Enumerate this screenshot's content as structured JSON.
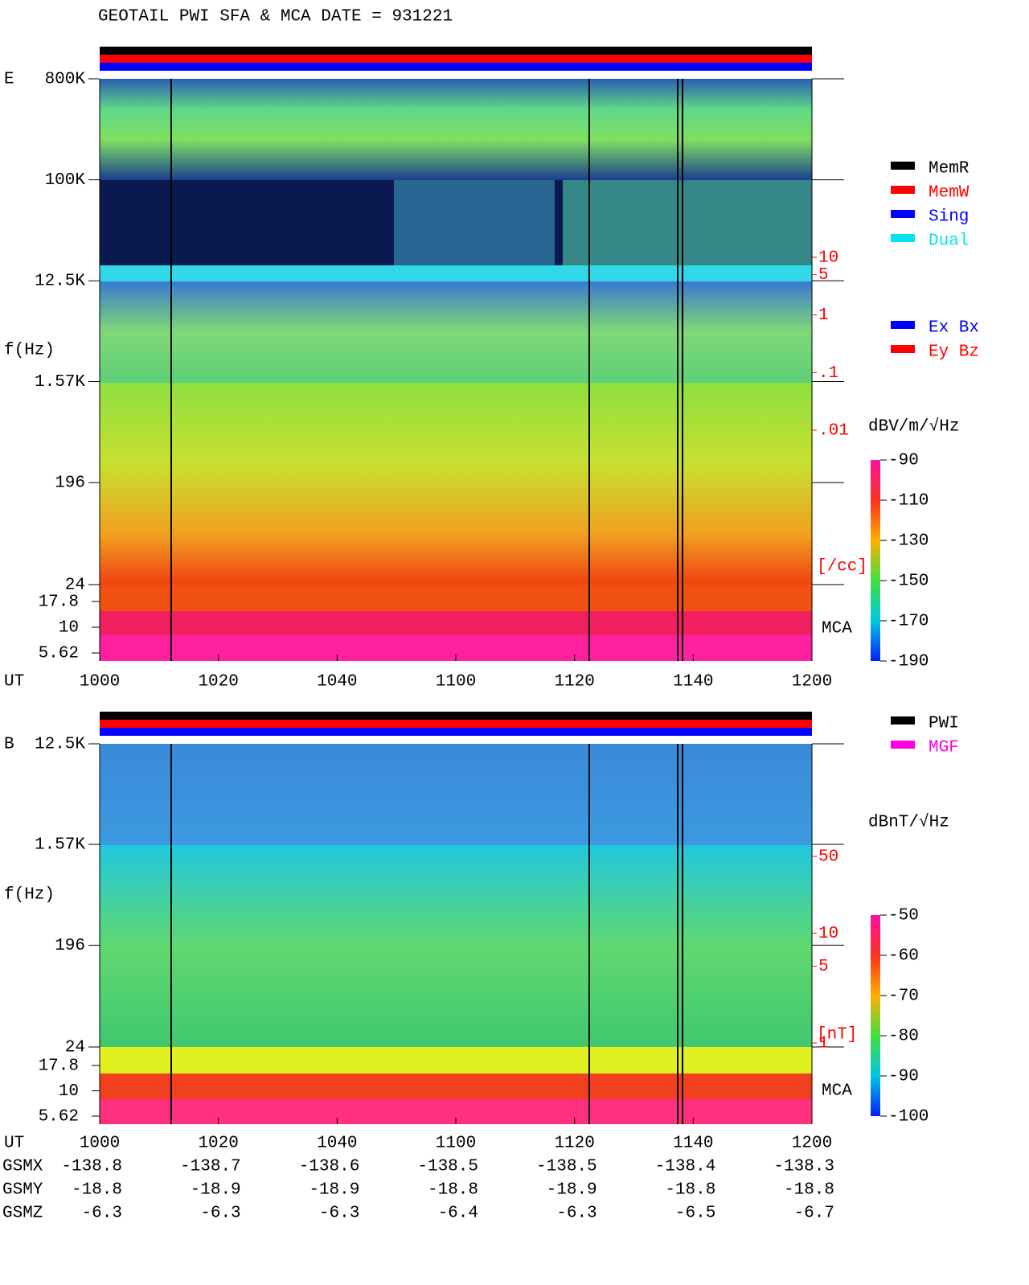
{
  "title": "GEOTAIL  PWI SFA & MCA   DATE = 931221",
  "chart_data": [
    {
      "type": "spectrogram",
      "panel_label": "E",
      "ylabel": "f(Hz)",
      "xlabel": "UT",
      "ylim": [
        24,
        800000
      ],
      "yticks": [
        {
          "value": 800000,
          "label": "800K"
        },
        {
          "value": 100000,
          "label": "100K"
        },
        {
          "value": 12500,
          "label": "12.5K"
        },
        {
          "value": 1570,
          "label": "1.57K"
        },
        196,
        24
      ],
      "xticks": [
        "1000",
        "1020",
        "1040",
        "1100",
        "1120",
        "1140",
        "1200"
      ],
      "mca_label": "MCA",
      "mca_ylim": [
        5.62,
        17.8
      ],
      "mca_ticks": [
        17.8,
        10,
        5.62
      ],
      "right_lim": [
        0.01,
        10
      ],
      "right_ticks": [
        10,
        5,
        1,
        {
          "value": 0.1,
          "label": ".1"
        },
        {
          "value": 0.01,
          "label": ".01"
        }
      ],
      "right_unit": "[/cc]",
      "right_color": "#ff0000",
      "colorbar": {
        "label": "dBV/m/√Hz",
        "lim": [
          -190,
          -90
        ],
        "ticks": [
          -90,
          -110,
          -130,
          -150,
          -170,
          -190
        ]
      },
      "legend": [
        {
          "name": "MemR",
          "color": "#000000"
        },
        {
          "name": "MemW",
          "color": "#ff0000"
        },
        {
          "name": "Sing",
          "color": "#0000ff"
        },
        {
          "name": "Dual",
          "color": "#00e5ee"
        }
      ],
      "legend2": [
        {
          "name": "Ex Bx",
          "color": "#0000ff"
        },
        {
          "name": "Ey Bz",
          "color": "#ff0000"
        }
      ]
    },
    {
      "type": "spectrogram",
      "panel_label": "B",
      "ylabel": "f(Hz)",
      "xlabel": "UT",
      "ylim": [
        24,
        12500
      ],
      "yticks": [
        {
          "value": 12500,
          "label": "12.5K"
        },
        {
          "value": 1570,
          "label": "1.57K"
        },
        196,
        24
      ],
      "xticks": [
        "1000",
        "1020",
        "1040",
        "1100",
        "1120",
        "1140",
        "1200"
      ],
      "mca_label": "MCA",
      "mca_ylim": [
        5.62,
        17.8
      ],
      "mca_ticks": [
        17.8,
        10,
        5.62
      ],
      "right_lim": [
        1,
        50
      ],
      "right_ticks": [
        50,
        10,
        5,
        1
      ],
      "right_unit": "[nT]",
      "right_color": "#ff0000",
      "colorbar": {
        "label": "dBnT/√Hz",
        "lim": [
          -100,
          -50
        ],
        "ticks": [
          -50,
          -60,
          -70,
          -80,
          -90,
          -100
        ]
      },
      "legend": [
        {
          "name": "PWI",
          "color": "#000000"
        },
        {
          "name": "MGF",
          "color": "#ff00dd"
        }
      ]
    }
  ],
  "orbit": [
    {
      "label": "GSMX",
      "values": [
        -138.8,
        -138.7,
        -138.6,
        -138.5,
        -138.5,
        -138.4,
        -138.3
      ]
    },
    {
      "label": "GSMY",
      "values": [
        -18.8,
        -18.9,
        -18.9,
        -18.8,
        -18.9,
        -18.8,
        -18.8
      ]
    },
    {
      "label": "GSMZ",
      "values": [
        -6.3,
        -6.3,
        -6.3,
        -6.4,
        -6.3,
        -6.5,
        -6.7
      ]
    }
  ]
}
